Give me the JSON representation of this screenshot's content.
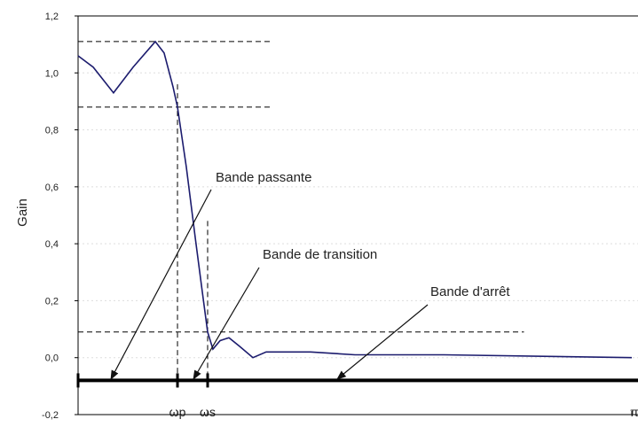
{
  "chart_data": {
    "type": "line",
    "y_label": "Gain",
    "xlim": [
      0,
      3.1416
    ],
    "ylim": [
      -0.2,
      1.2
    ],
    "yticks": [
      {
        "value": 1.2,
        "label": "1,2"
      },
      {
        "value": 1.0,
        "label": "1,0"
      },
      {
        "value": 0.8,
        "label": "0,8"
      },
      {
        "value": 0.6,
        "label": "0,6"
      },
      {
        "value": 0.4,
        "label": "0,4"
      },
      {
        "value": 0.2,
        "label": "0,2"
      },
      {
        "value": 0.0,
        "label": "0,0"
      },
      {
        "value": -0.2,
        "label": "-0,2"
      }
    ],
    "xticks": [
      {
        "value": 0.564,
        "label": "ωp"
      },
      {
        "value": 0.735,
        "label": "ωs"
      },
      {
        "value": 3.1416,
        "label": "π"
      }
    ],
    "grid": true,
    "series": [
      {
        "color": "#1c1c6e",
        "x": [
          0,
          0.086,
          0.201,
          0.312,
          0.438,
          0.488,
          0.539,
          0.564,
          0.614,
          0.665,
          0.705,
          0.735,
          0.765,
          0.806,
          0.856,
          0.916,
          0.992,
          1.067,
          1.168,
          1.319,
          1.571,
          2.074,
          3.1416
        ],
        "values": [
          1.06,
          1.02,
          0.93,
          1.02,
          1.11,
          1.07,
          0.95,
          0.88,
          0.67,
          0.42,
          0.23,
          0.09,
          0.03,
          0.06,
          0.07,
          0.04,
          0.0,
          0.02,
          0.02,
          0.02,
          0.01,
          0.01,
          0.0
        ]
      }
    ],
    "tolerance_lines": [
      {
        "y": 1.11,
        "x_end": 1.09
      },
      {
        "y": 0.88,
        "x_end": 1.09
      },
      {
        "y": 0.09,
        "x_end": 2.53
      }
    ],
    "band_line_y": -0.08,
    "annotations": [
      "Bande passante",
      "Bande de transition",
      "Bande d'arrêt"
    ]
  }
}
